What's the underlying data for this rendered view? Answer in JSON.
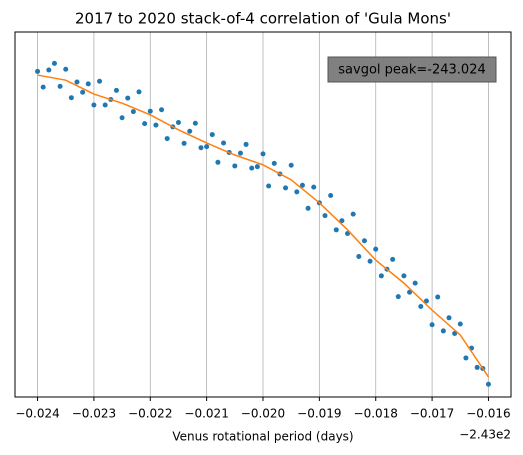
{
  "chart_data": {
    "type": "scatter",
    "title": "2017 to 2020 stack-of-4 correlation of 'Gula Mons'",
    "xlabel": "Venus rotational period (days)",
    "x_offset_label": "−2.43e2",
    "annotation": "savgol peak=-243.024",
    "xlim": [
      -0.0244,
      -0.0156
    ],
    "ylim": [
      0,
      100
    ],
    "xticks": [
      {
        "value": -0.024,
        "label": "−0.024"
      },
      {
        "value": -0.023,
        "label": "−0.023"
      },
      {
        "value": -0.022,
        "label": "−0.022"
      },
      {
        "value": -0.021,
        "label": "−0.021"
      },
      {
        "value": -0.02,
        "label": "−0.020"
      },
      {
        "value": -0.019,
        "label": "−0.019"
      },
      {
        "value": -0.018,
        "label": "−0.018"
      },
      {
        "value": -0.017,
        "label": "−0.017"
      },
      {
        "value": -0.016,
        "label": "−0.016"
      }
    ],
    "grid": "x",
    "series": [
      {
        "kind": "points",
        "color": "#1f77b4",
        "x": [
          -0.024,
          -0.0239,
          -0.0238,
          -0.0237,
          -0.0236,
          -0.0235,
          -0.0234,
          -0.0233,
          -0.0232,
          -0.0231,
          -0.023,
          -0.0229,
          -0.0228,
          -0.0227,
          -0.0226,
          -0.0225,
          -0.0224,
          -0.0223,
          -0.0222,
          -0.0221,
          -0.022,
          -0.0219,
          -0.0218,
          -0.0217,
          -0.0216,
          -0.0215,
          -0.0214,
          -0.0213,
          -0.0212,
          -0.0211,
          -0.021,
          -0.0209,
          -0.0208,
          -0.0207,
          -0.0206,
          -0.0205,
          -0.0204,
          -0.0203,
          -0.0202,
          -0.0201,
          -0.02,
          -0.0199,
          -0.0198,
          -0.0197,
          -0.0196,
          -0.0195,
          -0.0194,
          -0.0193,
          -0.0192,
          -0.0191,
          -0.019,
          -0.0189,
          -0.0188,
          -0.0187,
          -0.0186,
          -0.0185,
          -0.0184,
          -0.0183,
          -0.0182,
          -0.0181,
          -0.018,
          -0.0179,
          -0.0178,
          -0.0177,
          -0.0176,
          -0.0175,
          -0.0174,
          -0.0173,
          -0.0172,
          -0.0171,
          -0.017,
          -0.0169,
          -0.0168,
          -0.0167,
          -0.0166,
          -0.0165,
          -0.0164,
          -0.0163,
          -0.0162,
          -0.0161,
          -0.016
        ],
        "values": [
          89.2,
          84.9,
          89.6,
          91.4,
          85.1,
          89.8,
          82.0,
          86.3,
          83.5,
          85.8,
          80.0,
          86.5,
          80.0,
          81.5,
          84.0,
          76.5,
          81.9,
          78.2,
          83.6,
          74.9,
          78.3,
          74.5,
          78.7,
          70.8,
          74.0,
          75.2,
          69.5,
          72.8,
          75.0,
          68.3,
          68.6,
          71.9,
          64.3,
          69.6,
          67.0,
          63.3,
          66.8,
          69.2,
          62.7,
          63.1,
          66.6,
          57.8,
          64.0,
          61.1,
          57.3,
          63.5,
          56.2,
          58.0,
          51.7,
          57.5,
          53.2,
          49.7,
          55.2,
          45.8,
          48.3,
          44.8,
          50.1,
          38.5,
          42.8,
          37.2,
          40.5,
          33.2,
          35.0,
          37.7,
          27.5,
          33.2,
          28.7,
          31.2,
          24.8,
          26.3,
          19.8,
          27.4,
          18.1,
          21.7,
          17.4,
          20.0,
          10.7,
          13.4,
          8.1,
          7.8,
          3.5
        ]
      },
      {
        "kind": "line",
        "color": "#ff7f0e",
        "x": [
          -0.024,
          -0.0235,
          -0.023,
          -0.0225,
          -0.022,
          -0.0215,
          -0.021,
          -0.0205,
          -0.02,
          -0.0195,
          -0.019,
          -0.0185,
          -0.018,
          -0.0175,
          -0.017,
          -0.0165,
          -0.016
        ],
        "values": [
          88.2,
          86.8,
          83.0,
          80.5,
          77.3,
          73.2,
          69.6,
          66.3,
          63.6,
          59.5,
          53.2,
          45.8,
          37.5,
          31.2,
          23.8,
          17.0,
          5.5
        ]
      }
    ]
  }
}
